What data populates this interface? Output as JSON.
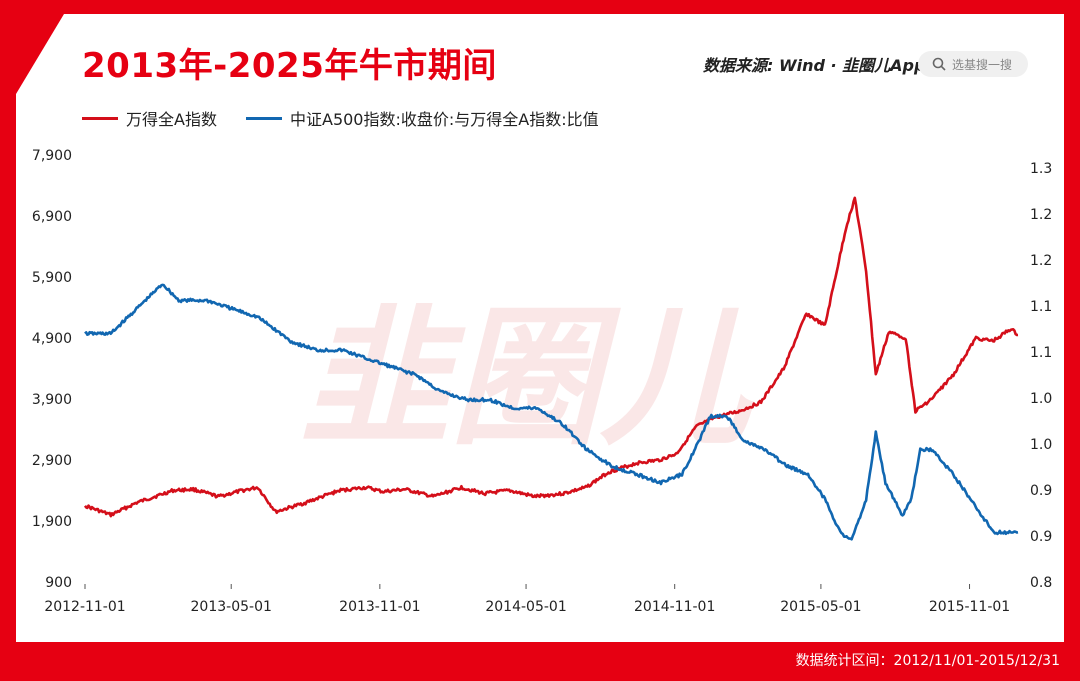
{
  "title": "2013年-2025年牛市期间",
  "source_text": "数据来源: Wind · 韭圈儿App",
  "search_placeholder": "选基搜一搜",
  "footer_text": "数据统计区间：2012/11/01-2015/12/31",
  "watermark": "韭圈儿",
  "colors": {
    "brand": "#e60012",
    "series1": "#d40f1a",
    "series2": "#1167b1"
  },
  "legend": [
    "万得全A指数",
    "中证A500指数:收盘价:与万得全A指数:比值"
  ],
  "chart_data": {
    "type": "line",
    "x_ticks": [
      "2012-11-01",
      "2013-05-01",
      "2013-11-01",
      "2014-05-01",
      "2014-11-01",
      "2015-05-01",
      "2015-11-01"
    ],
    "y_left_ticks": [
      "900",
      "1,900",
      "2,900",
      "3,900",
      "4,900",
      "5,900",
      "6,900",
      "7,900"
    ],
    "y_right_ticks": [
      "0.8",
      "0.9",
      "0.9",
      "1.0",
      "1.0",
      "1.1",
      "1.1",
      "1.2",
      "1.2",
      "1.3"
    ],
    "y_left_range": [
      900,
      7900
    ],
    "y_right_range": [
      0.8,
      1.3
    ],
    "x_range": [
      "2012-11-01",
      "2015-12-31"
    ],
    "grid": false,
    "legend_position": "top-left",
    "series": [
      {
        "name": "万得全A指数",
        "axis": "left",
        "points": [
          [
            "2012-11-01",
            2150
          ],
          [
            "2012-12-03",
            2000
          ],
          [
            "2013-01-04",
            2200
          ],
          [
            "2013-02-18",
            2400
          ],
          [
            "2013-03-15",
            2420
          ],
          [
            "2013-04-15",
            2300
          ],
          [
            "2013-05-15",
            2400
          ],
          [
            "2013-06-03",
            2450
          ],
          [
            "2013-06-25",
            2050
          ],
          [
            "2013-08-01",
            2200
          ],
          [
            "2013-09-12",
            2400
          ],
          [
            "2013-10-15",
            2450
          ],
          [
            "2013-11-05",
            2380
          ],
          [
            "2013-12-02",
            2420
          ],
          [
            "2014-01-06",
            2300
          ],
          [
            "2014-02-10",
            2450
          ],
          [
            "2014-03-10",
            2350
          ],
          [
            "2014-04-10",
            2400
          ],
          [
            "2014-05-12",
            2300
          ],
          [
            "2014-06-16",
            2350
          ],
          [
            "2014-07-14",
            2450
          ],
          [
            "2014-08-11",
            2700
          ],
          [
            "2014-09-15",
            2850
          ],
          [
            "2014-10-13",
            2900
          ],
          [
            "2014-11-03",
            3000
          ],
          [
            "2014-11-28",
            3450
          ],
          [
            "2014-12-22",
            3600
          ],
          [
            "2015-01-20",
            3700
          ],
          [
            "2015-02-16",
            3850
          ],
          [
            "2015-03-16",
            4400
          ],
          [
            "2015-04-13",
            5300
          ],
          [
            "2015-05-06",
            5100
          ],
          [
            "2015-06-01",
            6700
          ],
          [
            "2015-06-12",
            7200
          ],
          [
            "2015-06-26",
            6000
          ],
          [
            "2015-07-08",
            4300
          ],
          [
            "2015-07-24",
            5000
          ],
          [
            "2015-08-14",
            4900
          ],
          [
            "2015-08-26",
            3700
          ],
          [
            "2015-09-15",
            3900
          ],
          [
            "2015-10-12",
            4300
          ],
          [
            "2015-11-09",
            4900
          ],
          [
            "2015-11-30",
            4850
          ],
          [
            "2015-12-22",
            5050
          ],
          [
            "2015-12-31",
            4950
          ]
        ]
      },
      {
        "name": "中证A500指数:收盘价:与万得全A指数:比值",
        "axis": "right",
        "points": [
          [
            "2012-11-01",
            1.1
          ],
          [
            "2012-12-03",
            1.1
          ],
          [
            "2013-01-04",
            1.13
          ],
          [
            "2013-02-05",
            1.16
          ],
          [
            "2013-02-25",
            1.14
          ],
          [
            "2013-04-01",
            1.14
          ],
          [
            "2013-05-02",
            1.13
          ],
          [
            "2013-06-03",
            1.12
          ],
          [
            "2013-07-15",
            1.09
          ],
          [
            "2013-08-15",
            1.08
          ],
          [
            "2013-09-16",
            1.08
          ],
          [
            "2013-10-15",
            1.07
          ],
          [
            "2013-11-15",
            1.06
          ],
          [
            "2013-12-16",
            1.05
          ],
          [
            "2014-01-15",
            1.03
          ],
          [
            "2014-02-17",
            1.02
          ],
          [
            "2014-03-17",
            1.02
          ],
          [
            "2014-04-15",
            1.01
          ],
          [
            "2014-05-15",
            1.01
          ],
          [
            "2014-06-16",
            0.99
          ],
          [
            "2014-07-15",
            0.96
          ],
          [
            "2014-08-15",
            0.94
          ],
          [
            "2014-09-15",
            0.93
          ],
          [
            "2014-10-15",
            0.92
          ],
          [
            "2014-11-10",
            0.93
          ],
          [
            "2014-12-01",
            0.97
          ],
          [
            "2014-12-15",
            1.0
          ],
          [
            "2015-01-05",
            1.0
          ],
          [
            "2015-01-26",
            0.97
          ],
          [
            "2015-02-20",
            0.96
          ],
          [
            "2015-03-20",
            0.94
          ],
          [
            "2015-04-15",
            0.93
          ],
          [
            "2015-05-06",
            0.9
          ],
          [
            "2015-05-25",
            0.86
          ],
          [
            "2015-06-08",
            0.85
          ],
          [
            "2015-06-26",
            0.9
          ],
          [
            "2015-07-08",
            0.98
          ],
          [
            "2015-07-20",
            0.92
          ],
          [
            "2015-08-10",
            0.88
          ],
          [
            "2015-08-21",
            0.9
          ],
          [
            "2015-09-01",
            0.96
          ],
          [
            "2015-09-15",
            0.96
          ],
          [
            "2015-10-12",
            0.93
          ],
          [
            "2015-11-09",
            0.89
          ],
          [
            "2015-12-01",
            0.86
          ],
          [
            "2015-12-31",
            0.86
          ]
        ]
      }
    ]
  }
}
